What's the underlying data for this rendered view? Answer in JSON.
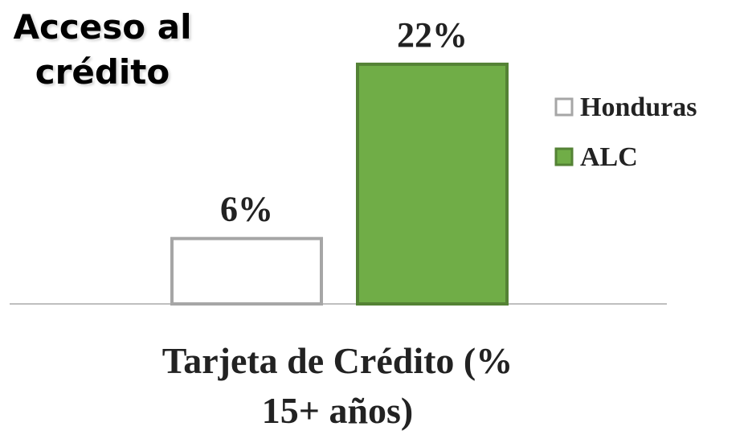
{
  "chart_data": {
    "type": "bar",
    "title": "Acceso al crédito",
    "categories": [
      "Tarjeta de Crédito (% 15+ años)"
    ],
    "series": [
      {
        "name": "Honduras",
        "color": "#ffffff",
        "edgecolor": "#a6a6a6",
        "values": [
          6
        ],
        "value_labels": [
          "6%"
        ]
      },
      {
        "name": "ALC",
        "color": "#70ad47",
        "edgecolor": "#548235",
        "values": [
          22
        ],
        "value_labels": [
          "22%"
        ]
      }
    ],
    "legend": "right"
  }
}
